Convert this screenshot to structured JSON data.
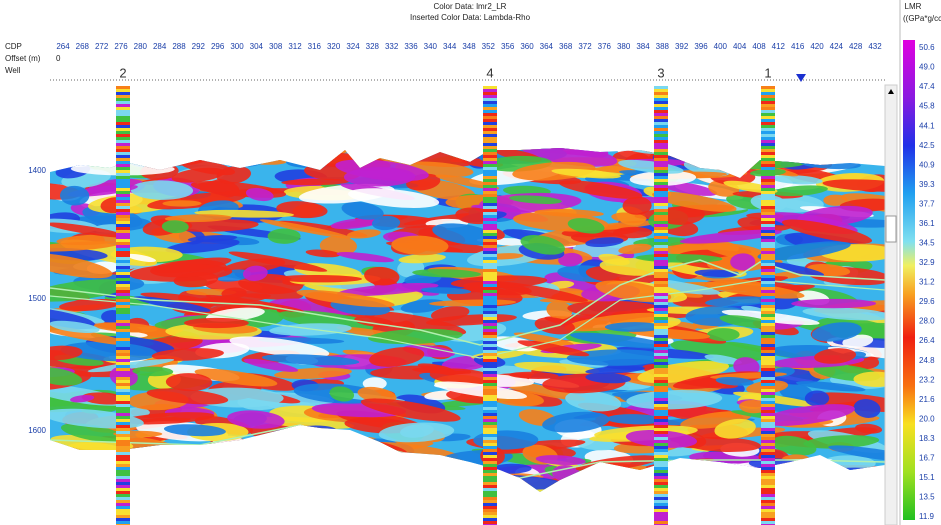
{
  "header": {
    "color_data": "Color Data: lmr2_LR",
    "inserted_color_data": "Inserted Color Data: Lambda-Rho"
  },
  "left_labels": {
    "cdp": "CDP",
    "offset": "Offset (m)",
    "offset_value": 0,
    "well": "Well"
  },
  "cdp_numbers": [
    264,
    268,
    272,
    276,
    280,
    284,
    288,
    292,
    296,
    300,
    304,
    308,
    312,
    316,
    320,
    324,
    328,
    332,
    336,
    340,
    344,
    348,
    352,
    356,
    360,
    364,
    368,
    372,
    376,
    380,
    384,
    388,
    392,
    396,
    400,
    404,
    408,
    412,
    416,
    420,
    424,
    428,
    432
  ],
  "wells": [
    "2",
    "4",
    "3",
    "1"
  ],
  "time_labels": [
    1400,
    1500,
    1600
  ],
  "colorbar": {
    "title": "LMR",
    "unit": "((GPa*g/cc)",
    "values": [
      "50.6",
      "49.0",
      "47.4",
      "45.8",
      "44.1",
      "42.5",
      "40.9",
      "39.3",
      "37.7",
      "36.1",
      "34.5",
      "32.9",
      "31.2",
      "29.6",
      "28.0",
      "26.4",
      "24.8",
      "23.2",
      "21.6",
      "20.0",
      "18.3",
      "16.7",
      "15.1",
      "13.5",
      "11.9"
    ]
  }
}
